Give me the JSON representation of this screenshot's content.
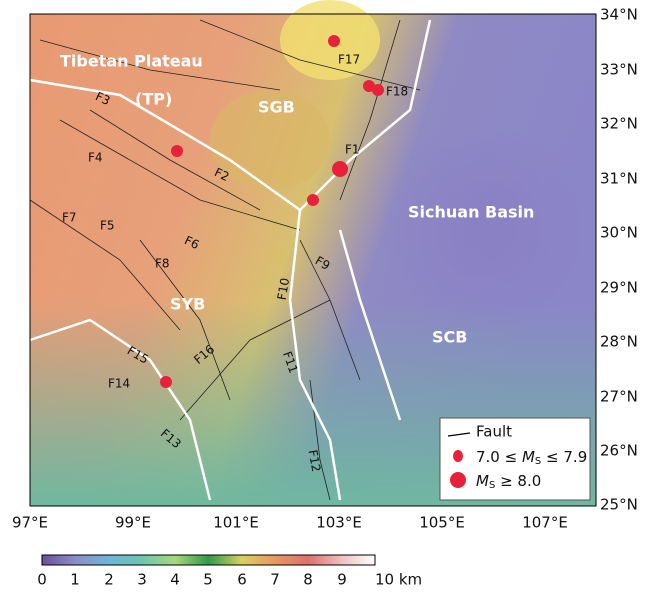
{
  "map": {
    "lat_labels": [
      "34°N",
      "33°N",
      "32°N",
      "31°N",
      "30°N",
      "29°N",
      "28°N",
      "27°N",
      "26°N",
      "25°N"
    ],
    "lon_labels": [
      "97°E",
      "99°E",
      "101°E",
      "103°E",
      "105°E",
      "107°E"
    ],
    "region_labels": [
      "Tibetan Plateau",
      "(TP)",
      "SGB",
      "Sichuan Basin",
      "SYB",
      "SCB"
    ],
    "fault_labels": [
      "F17",
      "F18",
      "F3",
      "F4",
      "F2",
      "F1",
      "F7",
      "F5",
      "F6",
      "F8",
      "F9",
      "F10",
      "F15",
      "F16",
      "F14",
      "F11",
      "F13",
      "F12"
    ],
    "legend": {
      "fault": "Fault",
      "small": [
        "7.0 ≤ ",
        "M",
        "S",
        " ≤ 7.9"
      ],
      "large": [
        "M",
        "S",
        " ≥ 8.0"
      ]
    },
    "colorbar_labels": [
      "0",
      "1",
      "2",
      "3",
      "4",
      "5",
      "6",
      "7",
      "8",
      "9",
      "10 km"
    ]
  }
}
